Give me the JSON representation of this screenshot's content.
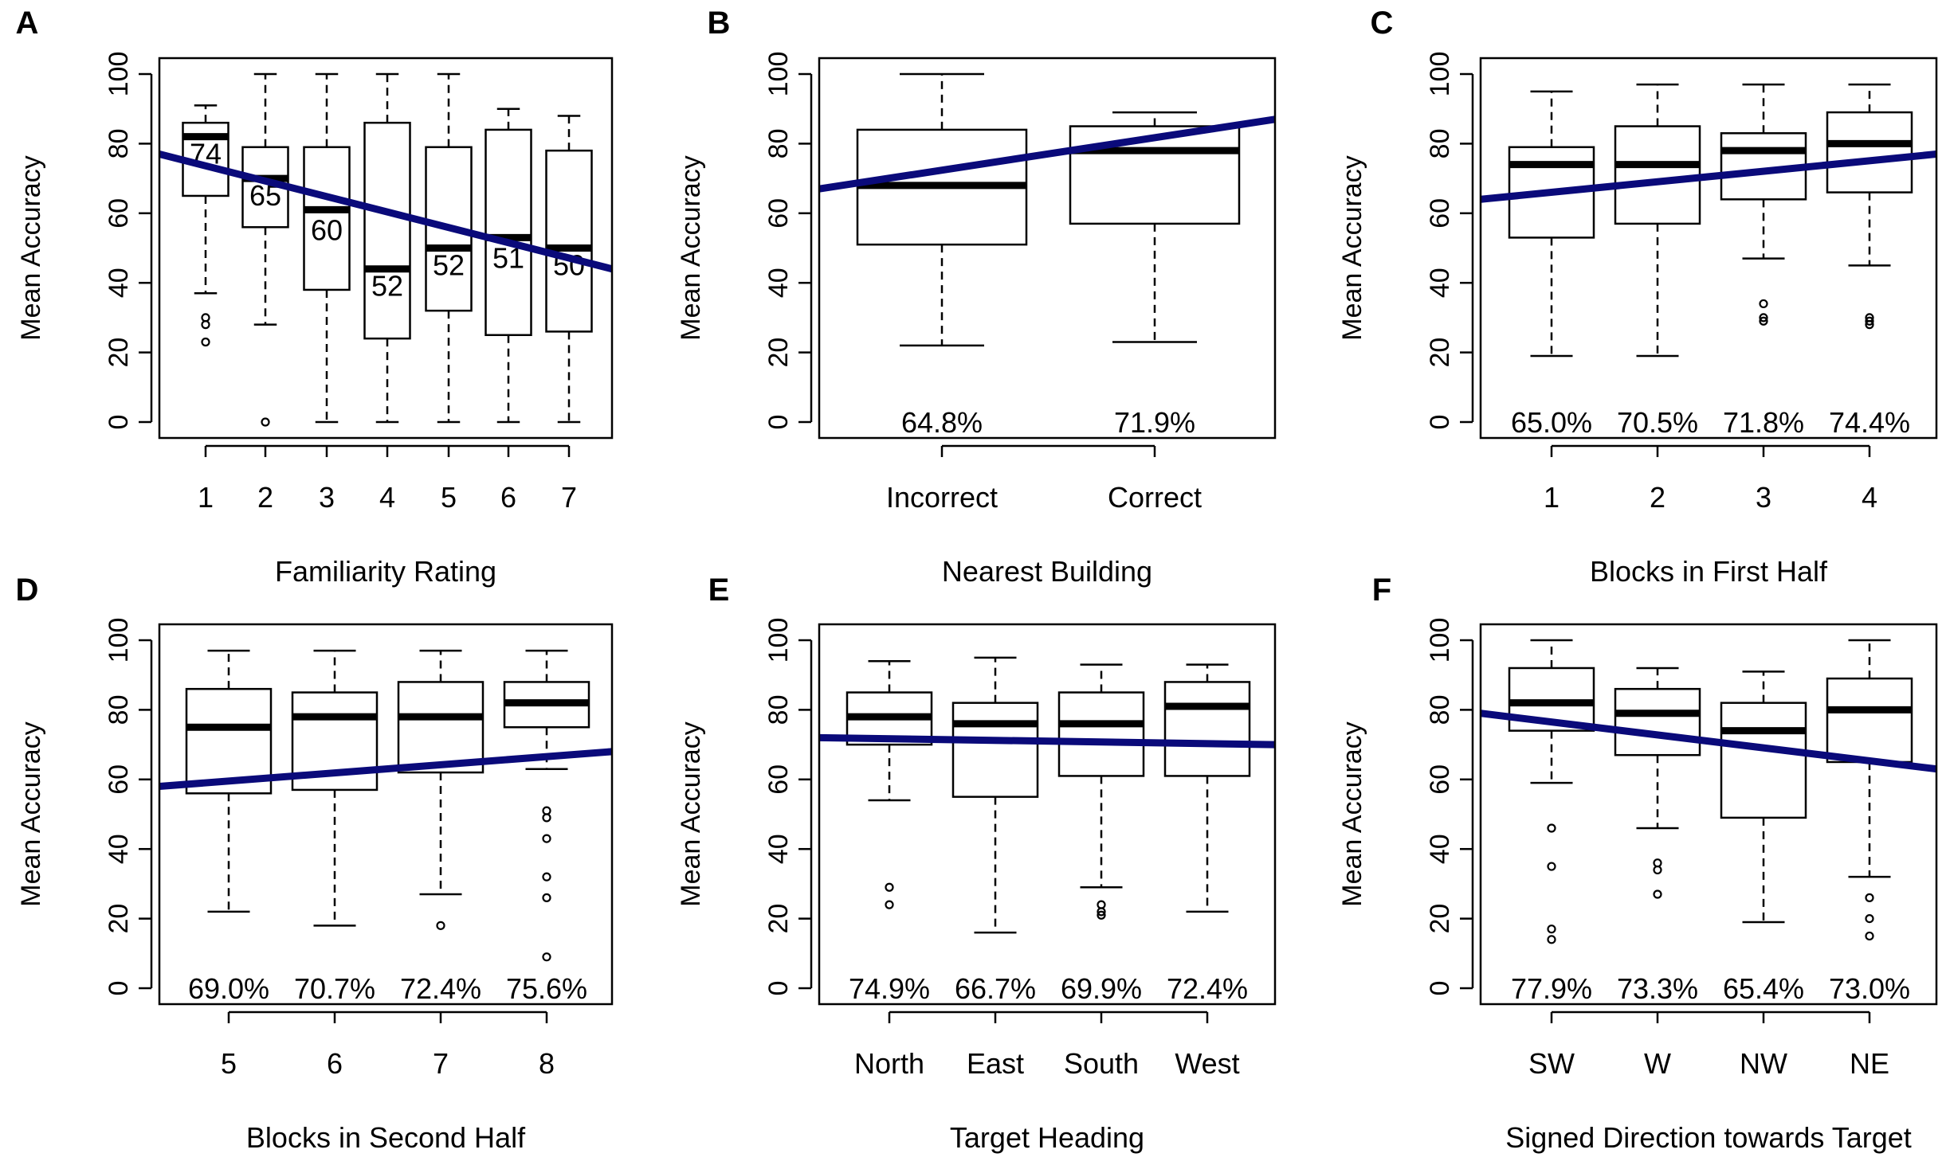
{
  "figure": {
    "axis_label_y": "Mean Accuracy",
    "line_color": "#0a0a7a",
    "box_color": "#000000"
  },
  "chart_data": [
    {
      "panel": "A",
      "type": "boxplot",
      "xlabel": "Familiarity Rating",
      "ylabel": "Mean Accuracy",
      "ylim": [
        0,
        100
      ],
      "yticks": [
        0,
        20,
        40,
        60,
        80,
        100
      ],
      "categories": [
        "1",
        "2",
        "3",
        "4",
        "5",
        "6",
        "7"
      ],
      "boxes": [
        {
          "q1": 65,
          "median": 82,
          "q3": 86,
          "wlo": 37,
          "whi": 91,
          "outliers": [
            30,
            28,
            23
          ]
        },
        {
          "q1": 56,
          "median": 70,
          "q3": 79,
          "wlo": 28,
          "whi": 100,
          "outliers": [
            0
          ]
        },
        {
          "q1": 38,
          "median": 61,
          "q3": 79,
          "wlo": 0,
          "whi": 100,
          "outliers": []
        },
        {
          "q1": 24,
          "median": 44,
          "q3": 86,
          "wlo": 0,
          "whi": 100,
          "outliers": []
        },
        {
          "q1": 32,
          "median": 50,
          "q3": 79,
          "wlo": 0,
          "whi": 100,
          "outliers": []
        },
        {
          "q1": 25,
          "median": 53,
          "q3": 84,
          "wlo": 0,
          "whi": 90,
          "outliers": []
        },
        {
          "q1": 26,
          "median": 50,
          "q3": 78,
          "wlo": 0,
          "whi": 88,
          "outliers": []
        }
      ],
      "labels": [
        "74",
        "65",
        "60",
        "52",
        "52",
        "51",
        "50"
      ],
      "label_values": [
        77,
        65,
        55,
        39,
        45,
        47,
        45
      ],
      "fit_line": [
        77,
        44
      ]
    },
    {
      "panel": "B",
      "type": "boxplot",
      "xlabel": "Nearest Building",
      "ylabel": "Mean Accuracy",
      "ylim": [
        0,
        100
      ],
      "yticks": [
        0,
        20,
        40,
        60,
        80,
        100
      ],
      "categories": [
        "Incorrect",
        "Correct"
      ],
      "boxes": [
        {
          "q1": 51,
          "median": 68,
          "q3": 84,
          "wlo": 22,
          "whi": 100,
          "outliers": []
        },
        {
          "q1": 57,
          "median": 78,
          "q3": 85,
          "wlo": 23,
          "whi": 89,
          "outliers": []
        }
      ],
      "labels": [
        "64.8%",
        "71.9%"
      ],
      "label_values": [
        0,
        0
      ],
      "fit_line": [
        67,
        87
      ]
    },
    {
      "panel": "C",
      "type": "boxplot",
      "xlabel": "Blocks in First Half",
      "ylabel": "Mean Accuracy",
      "ylim": [
        0,
        100
      ],
      "yticks": [
        0,
        20,
        40,
        60,
        80,
        100
      ],
      "categories": [
        "1",
        "2",
        "3",
        "4"
      ],
      "boxes": [
        {
          "q1": 53,
          "median": 74,
          "q3": 79,
          "wlo": 19,
          "whi": 95,
          "outliers": []
        },
        {
          "q1": 57,
          "median": 74,
          "q3": 85,
          "wlo": 19,
          "whi": 97,
          "outliers": []
        },
        {
          "q1": 64,
          "median": 78,
          "q3": 83,
          "wlo": 47,
          "whi": 97,
          "outliers": [
            34,
            30,
            29
          ]
        },
        {
          "q1": 66,
          "median": 80,
          "q3": 89,
          "wlo": 45,
          "whi": 97,
          "outliers": [
            30,
            29,
            28
          ]
        }
      ],
      "labels": [
        "65.0%",
        "70.5%",
        "71.8%",
        "74.4%"
      ],
      "label_values": [
        0,
        0,
        0,
        0
      ],
      "fit_line": [
        64,
        77
      ]
    },
    {
      "panel": "D",
      "type": "boxplot",
      "xlabel": "Blocks in Second Half",
      "ylabel": "Mean Accuracy",
      "ylim": [
        0,
        100
      ],
      "yticks": [
        0,
        20,
        40,
        60,
        80,
        100
      ],
      "categories": [
        "5",
        "6",
        "7",
        "8"
      ],
      "boxes": [
        {
          "q1": 56,
          "median": 75,
          "q3": 86,
          "wlo": 22,
          "whi": 97,
          "outliers": []
        },
        {
          "q1": 57,
          "median": 78,
          "q3": 85,
          "wlo": 18,
          "whi": 97,
          "outliers": []
        },
        {
          "q1": 62,
          "median": 78,
          "q3": 88,
          "wlo": 27,
          "whi": 97,
          "outliers": [
            18
          ]
        },
        {
          "q1": 75,
          "median": 82,
          "q3": 88,
          "wlo": 63,
          "whi": 97,
          "outliers": [
            51,
            49,
            43,
            32,
            26,
            9
          ]
        }
      ],
      "labels": [
        "69.0%",
        "70.7%",
        "72.4%",
        "75.6%"
      ],
      "label_values": [
        0,
        0,
        0,
        0
      ],
      "fit_line": [
        58,
        68
      ]
    },
    {
      "panel": "E",
      "type": "boxplot",
      "xlabel": "Target Heading",
      "ylabel": "Mean Accuracy",
      "ylim": [
        0,
        100
      ],
      "yticks": [
        0,
        20,
        40,
        60,
        80,
        100
      ],
      "categories": [
        "North",
        "East",
        "South",
        "West"
      ],
      "boxes": [
        {
          "q1": 70,
          "median": 78,
          "q3": 85,
          "wlo": 54,
          "whi": 94,
          "outliers": [
            29,
            24
          ]
        },
        {
          "q1": 55,
          "median": 76,
          "q3": 82,
          "wlo": 16,
          "whi": 95,
          "outliers": []
        },
        {
          "q1": 61,
          "median": 76,
          "q3": 85,
          "wlo": 29,
          "whi": 93,
          "outliers": [
            24,
            22,
            21
          ]
        },
        {
          "q1": 61,
          "median": 81,
          "q3": 88,
          "wlo": 22,
          "whi": 93,
          "outliers": []
        }
      ],
      "labels": [
        "74.9%",
        "66.7%",
        "69.9%",
        "72.4%"
      ],
      "label_values": [
        0,
        0,
        0,
        0
      ],
      "fit_line": [
        72,
        70
      ]
    },
    {
      "panel": "F",
      "type": "boxplot",
      "xlabel": "Signed Direction towards Target",
      "ylabel": "Mean Accuracy",
      "ylim": [
        0,
        100
      ],
      "yticks": [
        0,
        20,
        40,
        60,
        80,
        100
      ],
      "categories": [
        "SW",
        "W",
        "NW",
        "NE"
      ],
      "boxes": [
        {
          "q1": 74,
          "median": 82,
          "q3": 92,
          "wlo": 59,
          "whi": 100,
          "outliers": [
            46,
            35,
            17,
            14
          ]
        },
        {
          "q1": 67,
          "median": 79,
          "q3": 86,
          "wlo": 46,
          "whi": 92,
          "outliers": [
            36,
            34,
            27
          ]
        },
        {
          "q1": 49,
          "median": 74,
          "q3": 82,
          "wlo": 19,
          "whi": 91,
          "outliers": []
        },
        {
          "q1": 65,
          "median": 80,
          "q3": 89,
          "wlo": 32,
          "whi": 100,
          "outliers": [
            26,
            20,
            15
          ]
        }
      ],
      "labels": [
        "77.9%",
        "73.3%",
        "65.4%",
        "73.0%"
      ],
      "label_values": [
        0,
        0,
        0,
        0
      ],
      "fit_line": [
        79,
        63
      ]
    }
  ]
}
